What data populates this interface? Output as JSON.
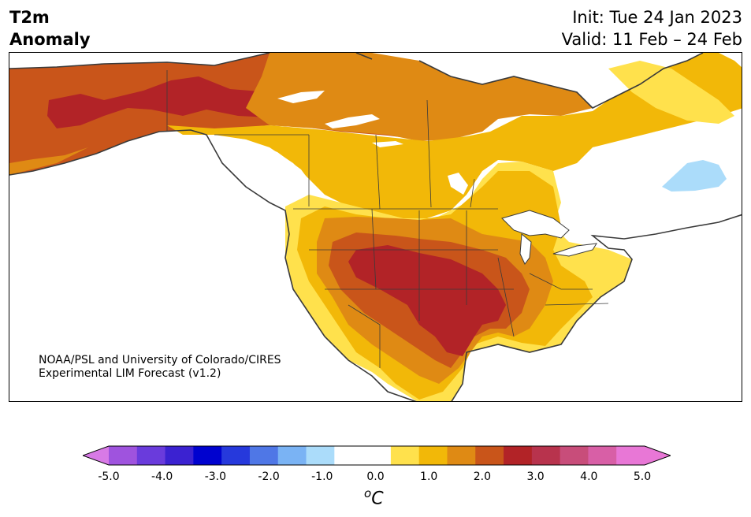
{
  "title": {
    "variable_line1": "T2m",
    "variable_line2": "Anomaly",
    "init": "Init: Tue 24 Jan 2023",
    "valid": "Valid: 11 Feb – 24 Feb"
  },
  "credit": {
    "line1": "NOAA/PSL and University of Colorado/CIRES",
    "line2": "Experimental LIM Forecast (v1.2)"
  },
  "legend": {
    "unit_base": "C",
    "unit_sup": "o",
    "ticks": [
      "-5.0",
      "-4.0",
      "-3.0",
      "-2.0",
      "-1.0",
      "0.0",
      "1.0",
      "2.0",
      "3.0",
      "4.0",
      "5.0"
    ],
    "bins": [
      {
        "range": "<-5.0",
        "color": "#d87ae6"
      },
      {
        "range": "-5.0 to -4.5",
        "color": "#9f53de"
      },
      {
        "range": "-4.5 to -4.0",
        "color": "#6a3bdc"
      },
      {
        "range": "-4.0 to -3.5",
        "color": "#3b22d1"
      },
      {
        "range": "-3.5 to -3.0",
        "color": "#0002cf"
      },
      {
        "range": "-3.0 to -2.5",
        "color": "#2639dc"
      },
      {
        "range": "-2.5 to -2.0",
        "color": "#4f77e6"
      },
      {
        "range": "-2.0 to -1.5",
        "color": "#7ab3f4"
      },
      {
        "range": "-1.5 to -1.0",
        "color": "#abdcfa"
      },
      {
        "range": "-1.0 to -0.5",
        "color": "#ffffff"
      },
      {
        "range": "-0.5 to 0.0",
        "color": "#ffffff"
      },
      {
        "range": "0.0 to 0.5",
        "color": "#ffe14c"
      },
      {
        "range": "0.5 to 1.0",
        "color": "#f2b808"
      },
      {
        "range": "1.0 to 1.5",
        "color": "#df8a14"
      },
      {
        "range": "1.5 to 2.0",
        "color": "#c9551a"
      },
      {
        "range": "2.0 to 2.5",
        "color": "#b22327"
      },
      {
        "range": "2.5 to 3.0",
        "color": "#b8334d"
      },
      {
        "range": "3.0 to 3.5",
        "color": "#c84d7a"
      },
      {
        "range": "3.5 to 4.0",
        "color": "#d85fa6"
      },
      {
        "range": "4.0 to 4.5",
        "color": "#e877d6"
      },
      {
        "range": ">5.0",
        "color": "#e877d6"
      }
    ]
  },
  "map": {
    "region": "North America",
    "ocean_color": "#ffffff",
    "coastline_color": "#3a3a3a",
    "anomaly_colors": {
      "0.0-0.5": "#ffe14c",
      "0.5-1.0": "#f2b808",
      "1.0-1.5": "#df8a14",
      "1.5-2.0": "#c9551a",
      "2.0-2.5": "#b22327",
      "-1.0--1.5": "#abdcfa"
    }
  }
}
